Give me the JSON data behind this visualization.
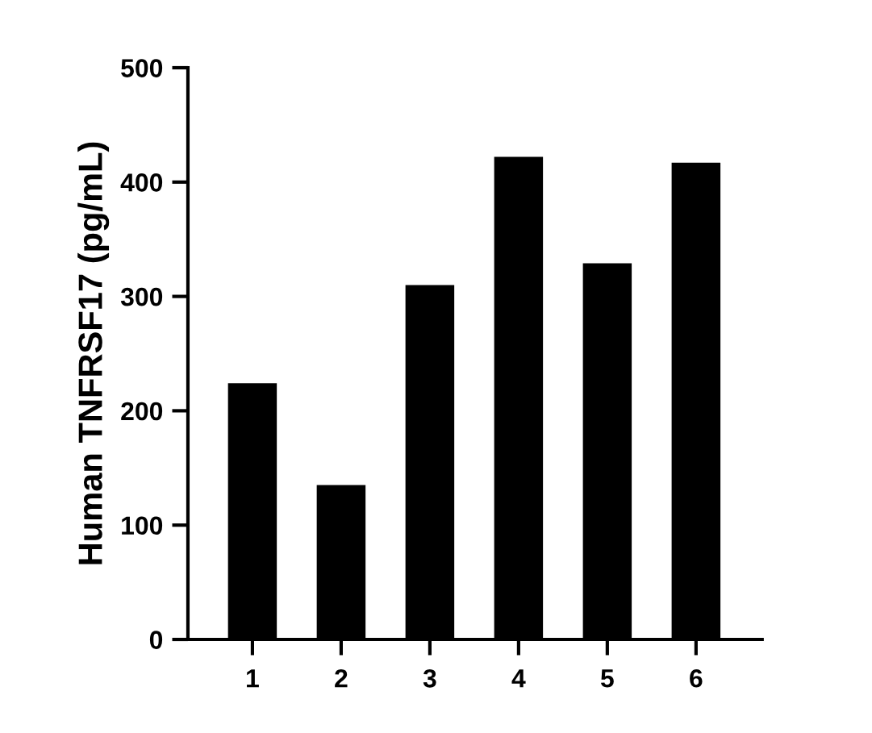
{
  "chart_data": {
    "type": "bar",
    "ylabel": "Human TNFRSF17 (pg/mL)",
    "categories": [
      "1",
      "2",
      "3",
      "4",
      "5",
      "6"
    ],
    "values": [
      224,
      135,
      310,
      422,
      329,
      417
    ],
    "color": "#000000",
    "ylim": [
      0,
      500
    ],
    "yticks": [
      0,
      100,
      200,
      300,
      400,
      500
    ],
    "grid": false,
    "legend": false
  }
}
